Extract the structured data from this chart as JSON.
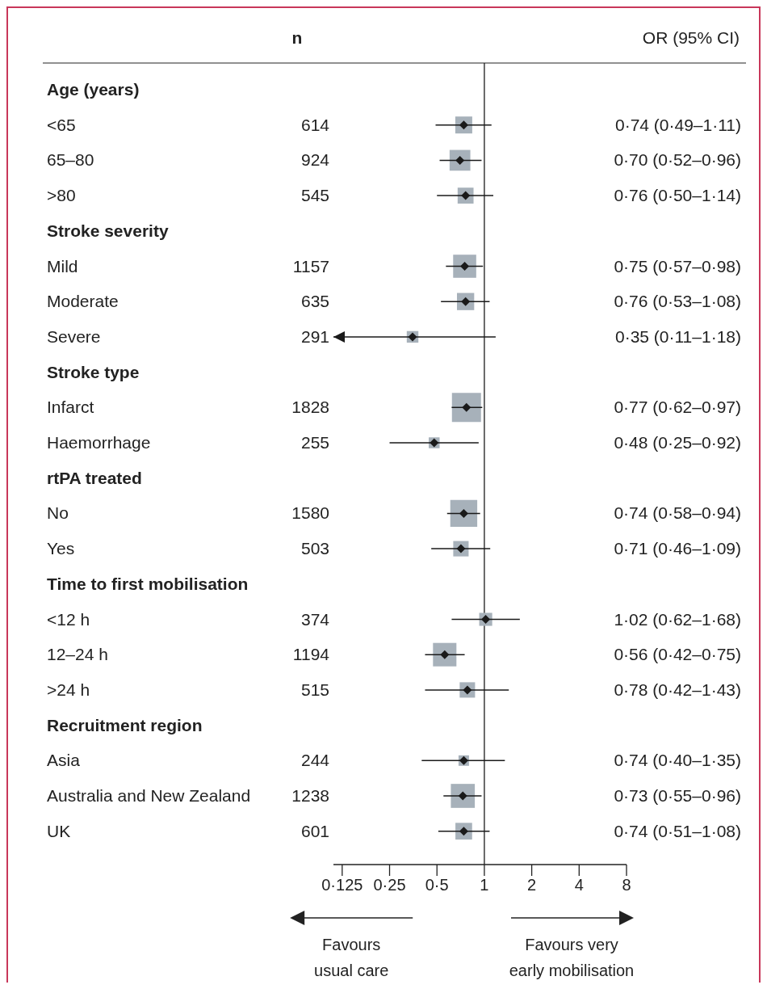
{
  "chart_data": {
    "type": "scatter",
    "orientation": "horizontal",
    "log": "x",
    "marker": "square",
    "categories": [
      "Age (years)",
      "<65",
      "65–80",
      ">80",
      "Stroke severity",
      "Mild",
      "Moderate",
      "Severe",
      "Stroke type",
      "Infarct",
      "Haemorrhage",
      "rtPA treated",
      "No",
      "Yes",
      "Time to first mobilisation",
      "<12 h",
      "12–24 h",
      ">24 h",
      "Recruitment region",
      "Asia",
      "Australia and New Zealand",
      "UK"
    ],
    "series": [
      {
        "color": "#a7b1ba",
        "values": [
          null,
          0.74,
          0.7,
          0.76,
          null,
          0.75,
          0.76,
          0.35,
          null,
          0.77,
          0.48,
          null,
          0.74,
          0.71,
          null,
          1.02,
          0.56,
          0.78,
          null,
          0.74,
          0.73,
          0.74
        ],
        "errors": [
          null,
          [
            0.49,
            1.11
          ],
          [
            0.52,
            0.96
          ],
          [
            0.5,
            1.14
          ],
          null,
          [
            0.57,
            0.98
          ],
          [
            0.53,
            1.08
          ],
          [
            0.11,
            1.18
          ],
          null,
          [
            0.62,
            0.97
          ],
          [
            0.25,
            0.92
          ],
          null,
          [
            0.58,
            0.94
          ],
          [
            0.46,
            1.09
          ],
          null,
          [
            0.62,
            1.68
          ],
          [
            0.42,
            0.75
          ],
          [
            0.42,
            1.43
          ],
          null,
          [
            0.4,
            1.35
          ],
          [
            0.55,
            0.96
          ],
          [
            0.51,
            1.08
          ]
        ],
        "sizes": [
          null,
          0.34,
          0.51,
          0.3,
          null,
          0.63,
          0.35,
          0.16,
          null,
          1,
          0.14,
          null,
          0.86,
          0.28,
          null,
          0.2,
          0.65,
          0.28,
          null,
          0.13,
          0.68,
          0.33
        ],
        "value_labels": [
          null,
          "0·74 (0·49–1·11)",
          "0·70 (0·52–0·96)",
          "0·76 (0·50–1·14)",
          null,
          "0·75 (0·57–0·98)",
          "0·76 (0·53–1·08)",
          "0·35 (0·11–1·18)",
          null,
          "0·77 (0·62–0·97)",
          "0·48 (0·25–0·92)",
          null,
          "0·74 (0·58–0·94)",
          "0·71 (0·46–1·09)",
          null,
          "1·02 (0·62–1·68)",
          "0·56 (0·42–0·75)",
          "0·78 (0·42–1·43)",
          null,
          "0·74 (0·40–1·35)",
          "0·73 (0·55–0·96)",
          "0·74 (0·51–1·08)"
        ]
      }
    ],
    "xlim": [
      0.11,
      8
    ],
    "xticks": [
      {
        "value": 0.125,
        "label": "0·125"
      },
      {
        "value": 0.25,
        "label": "0·25"
      },
      {
        "value": 0.5,
        "label": "0·5"
      },
      1,
      2,
      4,
      8
    ],
    "ref_lines": [
      {
        "axis": "x",
        "value": 1,
        "color": "#1a1a1a"
      }
    ],
    "annotations": [
      "n",
      "OR (95% CI)",
      "Favours usual care",
      "Favours very early mobilisation",
      "614",
      "924",
      "545",
      "1157",
      "635",
      "291",
      "1828",
      "255",
      "1580",
      "503",
      "374",
      "1194",
      "515",
      "244",
      "1238",
      "601"
    ]
  }
}
